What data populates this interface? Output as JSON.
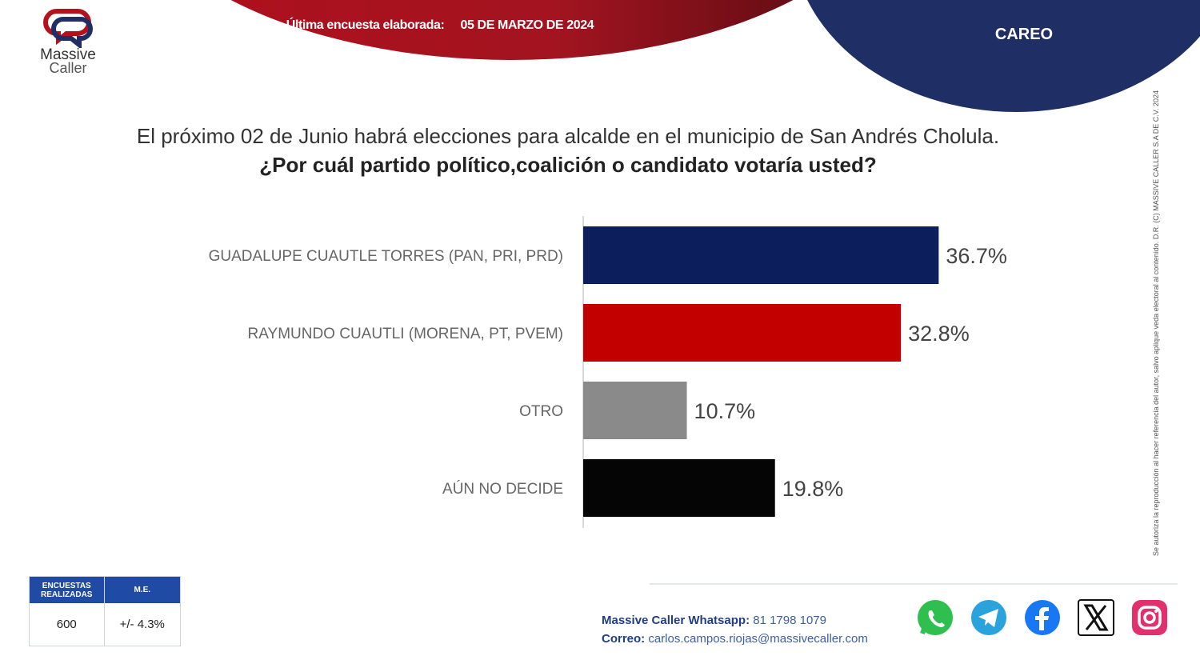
{
  "header": {
    "last_survey_label": "Última encuesta elaborada:",
    "last_survey_date": "05 DE MARZO DE 2024",
    "section": "CAREO"
  },
  "logo": {
    "line1": "Massive",
    "line2": "Caller"
  },
  "question": {
    "line1": "El próximo 02 de Junio habrá elecciones para alcalde en el municipio de San Andrés Cholula.",
    "line2": "¿Por cuál partido político,coalición o candidato votaría usted?"
  },
  "chart_data": {
    "type": "bar",
    "orientation": "horizontal",
    "categories": [
      "GUADALUPE CUAUTLE TORRES (PAN, PRI, PRD)",
      "RAYMUNDO CUAUTLI (MORENA, PT, PVEM)",
      "OTRO",
      "AÚN NO DECIDE"
    ],
    "values": [
      36.7,
      32.8,
      10.7,
      19.8
    ],
    "value_labels": [
      "36.7%",
      "32.8%",
      "10.7%",
      "19.8%"
    ],
    "colors": [
      "#0c1f5c",
      "#c20000",
      "#8a8a8a",
      "#050505"
    ],
    "title": "",
    "xlabel": "",
    "ylabel": "",
    "xlim": [
      0,
      37
    ]
  },
  "legal": "Se autoriza la reproducción al hacer referencia del autor, salvo aplique veda electoral al contenido.  D.R. (C) MASSIVE CALLER S.A DE C.V. 2024",
  "summary": {
    "col1_header": "ENCUESTAS REALIZADAS",
    "col2_header": "M.E.",
    "surveys": "600",
    "margin": "+/- 4.3%"
  },
  "contact": {
    "whatsapp_label": "Massive Caller Whatsapp:",
    "whatsapp_number": "81 1798 1079",
    "email_label": "Correo:",
    "email": "carlos.campos.riojas@massivecaller.com"
  },
  "social_icons": [
    "whatsapp-icon",
    "telegram-icon",
    "facebook-icon",
    "x-icon",
    "instagram-icon"
  ]
}
